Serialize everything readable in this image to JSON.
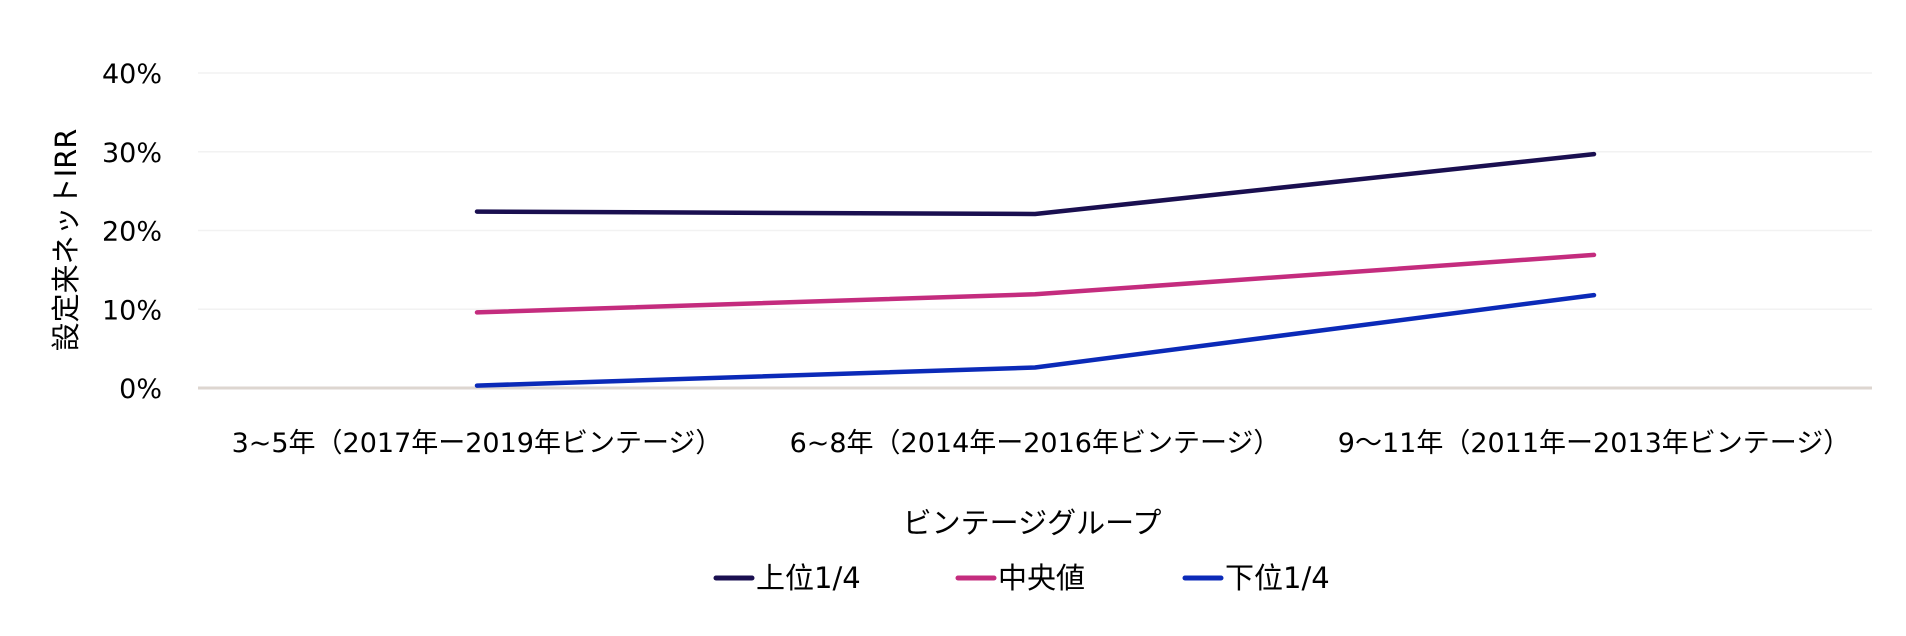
{
  "chart_data": {
    "type": "line",
    "title": "",
    "xlabel": "ビンテージグループ",
    "ylabel": "設定来ネットIRR",
    "ylim": [
      0,
      40
    ],
    "yticks": [
      0,
      10,
      20,
      30,
      40
    ],
    "ytick_labels": [
      "0%",
      "10%",
      "20%",
      "30%",
      "40%"
    ],
    "categories": [
      "3~5年（2017年ー2019年ビンテージ）",
      "6~8年（2014年ー2016年ビンテージ）",
      "9〜11年（2011年ー2013年ビンテージ）"
    ],
    "series": [
      {
        "name": "上位1/4",
        "color": "#1a0f50",
        "values": [
          22.4,
          22.1,
          29.7
        ]
      },
      {
        "name": "中央値",
        "color": "#c42c7e",
        "values": [
          9.6,
          11.9,
          16.9
        ]
      },
      {
        "name": "下位1/4",
        "color": "#0b2ab8",
        "values": [
          0.3,
          2.6,
          11.8
        ]
      }
    ],
    "grid": true,
    "legend_position": "bottom-center"
  }
}
